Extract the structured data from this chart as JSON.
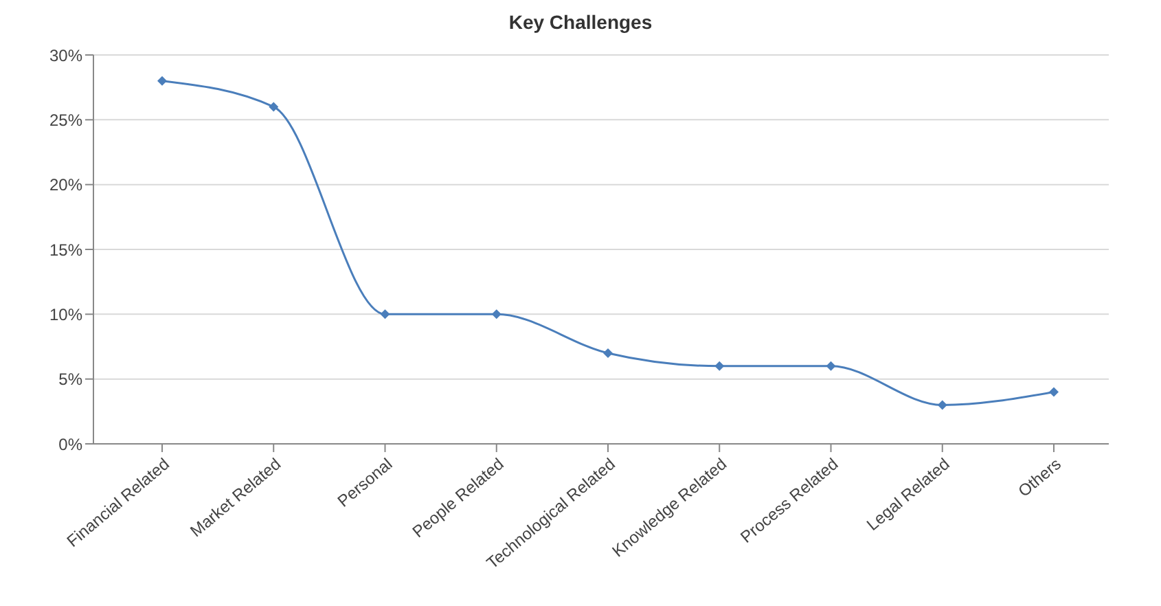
{
  "chart_data": {
    "type": "line",
    "title": "Key Challenges",
    "categories": [
      "Financial Related",
      "Market Related",
      "Personal",
      "People Related",
      "Technological Related",
      "Knowledge Related",
      "Process Related",
      "Legal Related",
      "Others"
    ],
    "series": [
      {
        "color": "#4a7ebb",
        "values": [
          28,
          26,
          10,
          10,
          7,
          6,
          6,
          3,
          4
        ]
      }
    ],
    "ylim": [
      0,
      30
    ],
    "yticks": [
      {
        "value": 0,
        "label": "0%"
      },
      {
        "value": 5,
        "label": "5%"
      },
      {
        "value": 10,
        "label": "10%"
      },
      {
        "value": 15,
        "label": "15%"
      },
      {
        "value": 20,
        "label": "20%"
      },
      {
        "value": 25,
        "label": "25%"
      },
      {
        "value": 30,
        "label": "30%"
      }
    ],
    "grid": "y",
    "legend": false,
    "marker": "diamond",
    "line_style": "solid"
  }
}
